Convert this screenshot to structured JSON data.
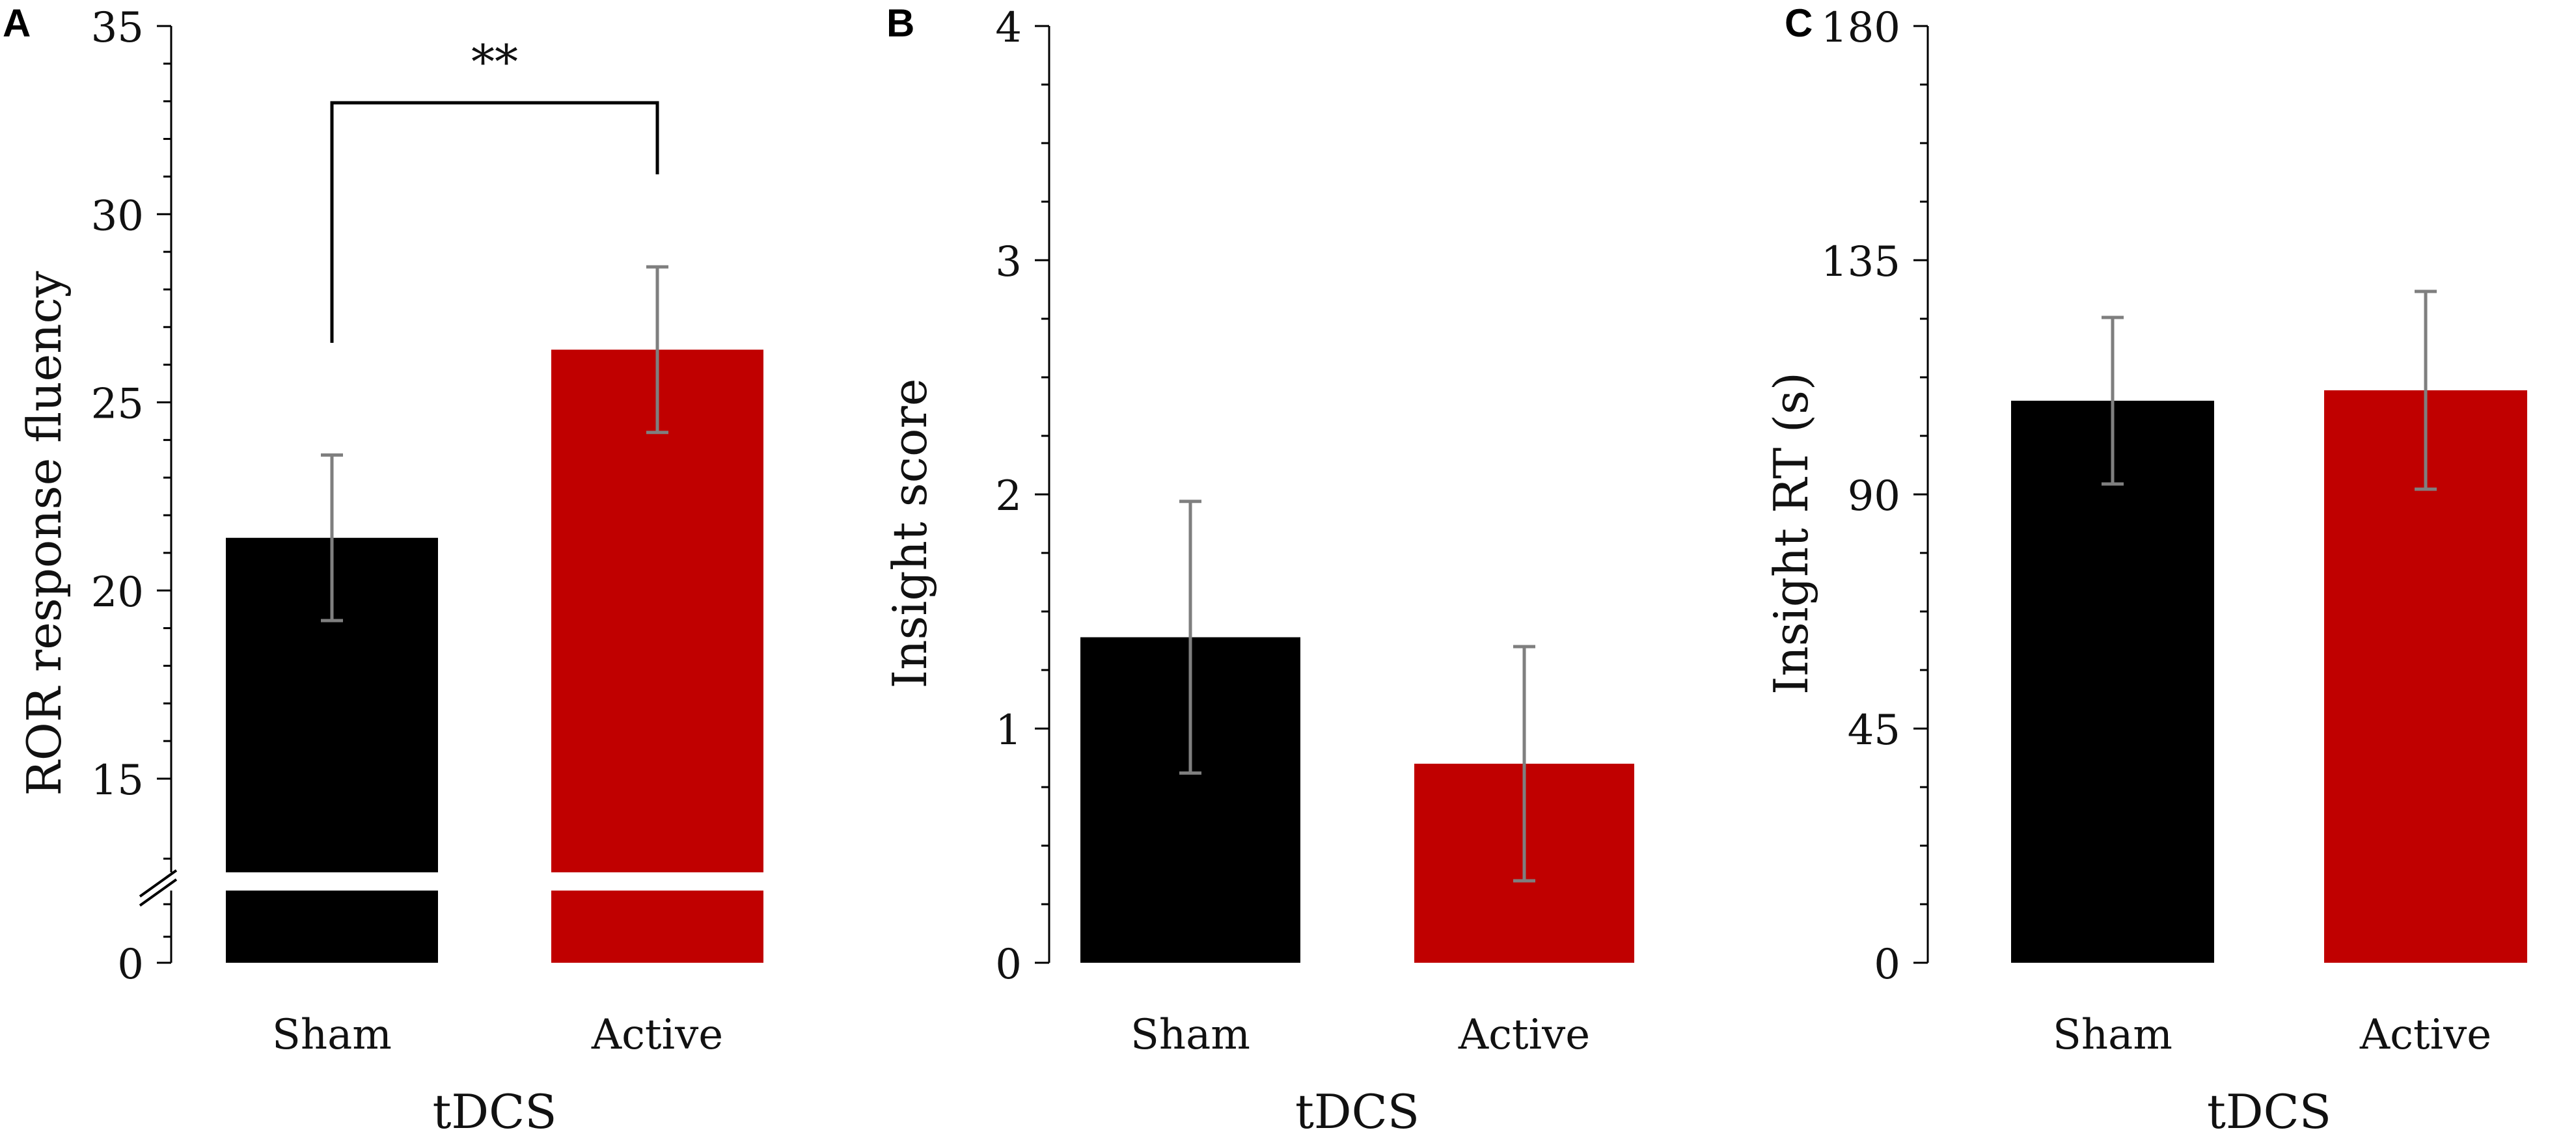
{
  "chart_data": [
    {
      "type": "bar",
      "panel": "A",
      "categories": [
        "Sham",
        "Active"
      ],
      "values": [
        21.4,
        26.4
      ],
      "error": [
        2.2,
        2.2
      ],
      "colors": [
        "#000000",
        "#c00000"
      ],
      "ylabel": "ROR response fluency",
      "xlabel": "tDCS",
      "ylim": [
        0,
        35
      ],
      "axis_break": true,
      "yticks": [
        "0",
        "15",
        "20",
        "25",
        "30",
        "35"
      ],
      "annotation": "**"
    },
    {
      "type": "bar",
      "panel": "B",
      "categories": [
        "Sham",
        "Active"
      ],
      "values": [
        1.39,
        0.85
      ],
      "error": [
        0.58,
        0.5
      ],
      "colors": [
        "#000000",
        "#c00000"
      ],
      "ylabel": "Insight score",
      "xlabel": "tDCS",
      "ylim": [
        0,
        4
      ],
      "yticks": [
        "0",
        "1",
        "2",
        "3",
        "4"
      ]
    },
    {
      "type": "bar",
      "panel": "C",
      "categories": [
        "Sham",
        "Active"
      ],
      "values": [
        108,
        110
      ],
      "error": [
        16,
        19
      ],
      "colors": [
        "#000000",
        "#c00000"
      ],
      "ylabel": "Insight RT (s)",
      "xlabel": "tDCS",
      "ylim": [
        0,
        180
      ],
      "yticks": [
        "0",
        "45",
        "90",
        "135",
        "180"
      ]
    }
  ]
}
